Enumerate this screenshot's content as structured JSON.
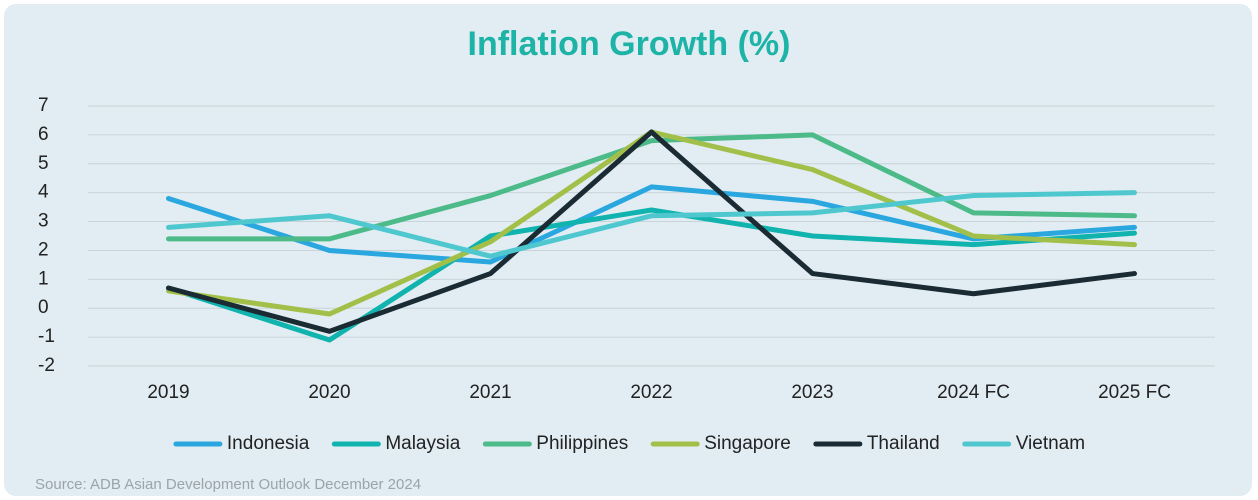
{
  "chart_data": {
    "type": "line",
    "title": "Inflation Growth (%)",
    "categories": [
      "2019",
      "2020",
      "2021",
      "2022",
      "2023",
      "2024 FC",
      "2025 FC"
    ],
    "series": [
      {
        "name": "Indonesia",
        "color": "#2aa7df",
        "values": [
          3.8,
          2.0,
          1.6,
          4.2,
          3.7,
          2.4,
          2.8
        ]
      },
      {
        "name": "Malaysia",
        "color": "#10b3ad",
        "values": [
          0.7,
          -1.1,
          2.5,
          3.4,
          2.5,
          2.2,
          2.6
        ]
      },
      {
        "name": "Philippines",
        "color": "#4cba89",
        "values": [
          2.4,
          2.4,
          3.9,
          5.8,
          6.0,
          3.3,
          3.2
        ]
      },
      {
        "name": "Singapore",
        "color": "#a2c049",
        "values": [
          0.6,
          -0.2,
          2.3,
          6.1,
          4.8,
          2.5,
          2.2
        ]
      },
      {
        "name": "Thailand",
        "color": "#1b2b34",
        "values": [
          0.7,
          -0.8,
          1.2,
          6.1,
          1.2,
          0.5,
          1.2
        ]
      },
      {
        "name": "Vietnam",
        "color": "#4ec8ce",
        "values": [
          2.8,
          3.2,
          1.8,
          3.2,
          3.3,
          3.9,
          4.0
        ]
      }
    ],
    "ylim": [
      -2,
      7
    ],
    "yticks": [
      -2,
      -1,
      0,
      1,
      2,
      3,
      4,
      5,
      6,
      7
    ],
    "grid": true,
    "legend": "bottom",
    "source": "Source: ADB Asian Development Outlook December 2024"
  }
}
